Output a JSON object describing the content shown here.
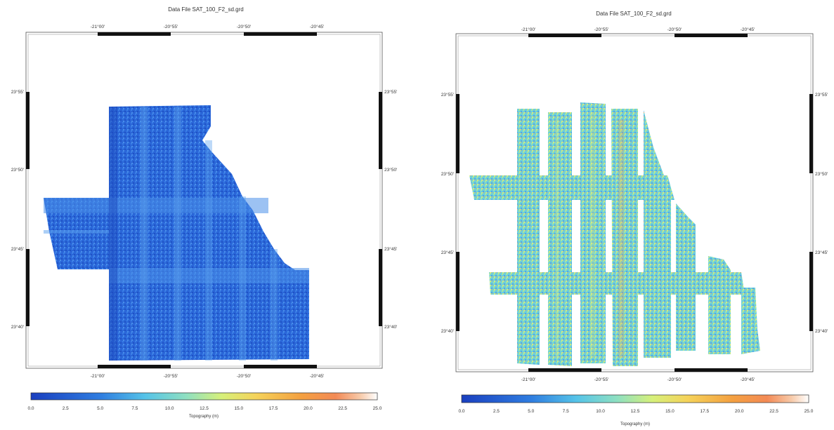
{
  "maps": [
    {
      "id": "left",
      "title": "Data File SAT_100_F2_sd.grd",
      "lon_ticks": [
        "-21°00'",
        "-20°55'",
        "-20°50'",
        "-20°45'"
      ],
      "lat_ticks": [
        "23°55'",
        "23°50'",
        "23°45'",
        "23°40'"
      ],
      "colorbar": {
        "label": "Topography (m)",
        "ticks": [
          "0.0",
          "2.5",
          "5.0",
          "7.5",
          "10.0",
          "12.5",
          "15.0",
          "17.5",
          "20.0",
          "22.5",
          "25.0"
        ],
        "range": [
          0,
          25
        ],
        "colors": [
          "#1a3fbf",
          "#2f7de0",
          "#55c3e8",
          "#8fe0c0",
          "#d6f07a",
          "#f5d35a",
          "#f4a040",
          "#f38a55",
          "#f7c9a8",
          "#ffffff"
        ]
      },
      "dominant_color": "#2a63d6"
    },
    {
      "id": "right",
      "title": "Data File SAT_100_F2_sd.grd",
      "lon_ticks": [
        "-21°00'",
        "-20°55'",
        "-20°50'",
        "-20°45'"
      ],
      "lat_ticks": [
        "23°55'",
        "23°50'",
        "23°45'",
        "23°40'"
      ],
      "colorbar": {
        "label": "Topography (m)",
        "ticks": [
          "0.0",
          "2.5",
          "5.0",
          "7.5",
          "10.0",
          "12.5",
          "15.0",
          "17.5",
          "20.0",
          "22.5",
          "25.0"
        ],
        "range": [
          0,
          25
        ],
        "colors": [
          "#1a3fbf",
          "#2f7de0",
          "#55c3e8",
          "#8fe0c0",
          "#d6f07a",
          "#f5d35a",
          "#f4a040",
          "#f38a55",
          "#f7c9a8",
          "#ffffff"
        ]
      },
      "dominant_color": "#6fcfd9"
    }
  ]
}
